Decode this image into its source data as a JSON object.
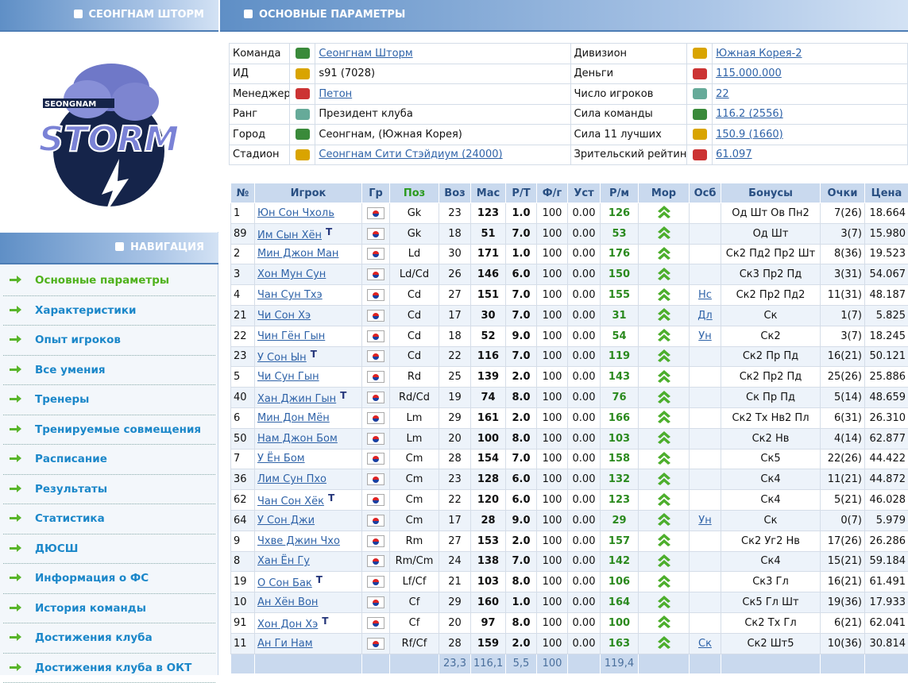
{
  "sidebar": {
    "team_header": "СЕОНГНАМ ШТОРМ",
    "logo": {
      "top": "SEONGNAM",
      "main": "STORM"
    },
    "nav_header": "НАВИГАЦИЯ",
    "nav": [
      "Основные параметры",
      "Характеристики",
      "Опыт игроков",
      "Все умения",
      "Тренеры",
      "Тренируемые совмещения",
      "Расписание",
      "Результаты",
      "Статистика",
      "ДЮСШ",
      "Информация о ФС",
      "История команды",
      "Достижения клуба",
      "Достижения клуба в ОКТ"
    ]
  },
  "main": {
    "header": "ОСНОВНЫЕ ПАРАМЕТРЫ",
    "info": {
      "left": [
        {
          "label": "Команда",
          "value": "Сеонгнам Шторм",
          "link": true
        },
        {
          "label": "ИД",
          "value": "s91 (7028)"
        },
        {
          "label": "Менеджер",
          "value": "Петон",
          "link": true
        },
        {
          "label": "Ранг",
          "value": "Президент клуба"
        },
        {
          "label": "Город",
          "value": "Сеонгнам, (Южная Корея)"
        },
        {
          "label": "Стадион",
          "value": "Сеонгнам Сити Стэйдиум (24000)",
          "link": true
        }
      ],
      "right": [
        {
          "label": "Дивизион",
          "value": "Южная Корея-2",
          "link": true
        },
        {
          "label": "Деньги",
          "value": "115.000.000",
          "link": true
        },
        {
          "label": "Число игроков",
          "value": "22",
          "link": true
        },
        {
          "label": "Сила команды",
          "value": "116.2 (2556)",
          "link": true
        },
        {
          "label": "Сила 11 лучших",
          "value": "150.9 (1660)",
          "link": true
        },
        {
          "label": "Зрительский рейтинг",
          "value": "61.097",
          "link": true
        }
      ]
    },
    "players": {
      "columns": [
        "№",
        "Игрок",
        "Гр",
        "Поз",
        "Воз",
        "Мас",
        "Р/Т",
        "Ф/г",
        "Уст",
        "Р/м",
        "Мор",
        "Осб",
        "Бонусы",
        "Очки",
        "Цена"
      ],
      "rows": [
        {
          "no": "1",
          "name": "Юн Сон Чхоль",
          "pos": "Gk",
          "age": "23",
          "mas": "123",
          "rt": "1.0",
          "fg": "100",
          "ust": "0.00",
          "rm": "126",
          "bonus": "Од Шт Ов Пн2",
          "points": "7(26)",
          "price": "18.664"
        },
        {
          "no": "89",
          "name": "Им Сын Хён",
          "tag": "T",
          "pos": "Gk",
          "age": "18",
          "mas": "51",
          "rt": "7.0",
          "fg": "100",
          "ust": "0.00",
          "rm": "53",
          "bonus": "Од Шт",
          "points": "3(7)",
          "price": "15.980"
        },
        {
          "no": "2",
          "name": "Мин Джон Ман",
          "pos": "Ld",
          "age": "30",
          "mas": "171",
          "rt": "1.0",
          "fg": "100",
          "ust": "0.00",
          "rm": "176",
          "bonus": "Ск2 Пд2 Пр2 Шт",
          "points": "8(36)",
          "price": "19.523"
        },
        {
          "no": "3",
          "name": "Хон Мун Сун",
          "pos": "Ld/Cd",
          "age": "26",
          "mas": "146",
          "rt": "6.0",
          "fg": "100",
          "ust": "0.00",
          "rm": "150",
          "bonus": "Ск3 Пр2 Пд",
          "points": "3(31)",
          "price": "54.067"
        },
        {
          "no": "4",
          "name": "Чан Сун Тхэ",
          "pos": "Cd",
          "age": "27",
          "mas": "151",
          "rt": "7.0",
          "fg": "100",
          "ust": "0.00",
          "rm": "155",
          "osb": "Нс",
          "bonus": "Ск2 Пр2 Пд2",
          "points": "11(31)",
          "price": "48.187"
        },
        {
          "no": "21",
          "name": "Чи Сон Хэ",
          "pos": "Cd",
          "age": "17",
          "mas": "30",
          "rt": "7.0",
          "fg": "100",
          "ust": "0.00",
          "rm": "31",
          "osb": "Дл",
          "bonus": "Ск",
          "points": "1(7)",
          "price": "5.825"
        },
        {
          "no": "22",
          "name": "Чин Гён Гын",
          "pos": "Cd",
          "age": "18",
          "mas": "52",
          "rt": "9.0",
          "fg": "100",
          "ust": "0.00",
          "rm": "54",
          "osb": "Ун",
          "bonus": "Ск2",
          "points": "3(7)",
          "price": "18.245"
        },
        {
          "no": "23",
          "name": "У Сон Ын",
          "tag": "T",
          "pos": "Cd",
          "age": "22",
          "mas": "116",
          "rt": "7.0",
          "fg": "100",
          "ust": "0.00",
          "rm": "119",
          "bonus": "Ск2 Пр Пд",
          "points": "16(21)",
          "price": "50.121"
        },
        {
          "no": "5",
          "name": "Чи Сун Гын",
          "pos": "Rd",
          "age": "25",
          "mas": "139",
          "rt": "2.0",
          "fg": "100",
          "ust": "0.00",
          "rm": "143",
          "bonus": "Ск2 Пр2 Пд",
          "points": "25(26)",
          "price": "25.886"
        },
        {
          "no": "40",
          "name": "Хан Джин Гын",
          "tag": "T",
          "pos": "Rd/Cd",
          "age": "19",
          "mas": "74",
          "rt": "8.0",
          "fg": "100",
          "ust": "0.00",
          "rm": "76",
          "bonus": "Ск Пр Пд",
          "points": "5(14)",
          "price": "48.659"
        },
        {
          "no": "6",
          "name": "Мин Дон Мён",
          "pos": "Lm",
          "age": "29",
          "mas": "161",
          "rt": "2.0",
          "fg": "100",
          "ust": "0.00",
          "rm": "166",
          "bonus": "Ск2 Тх Нв2 Пл",
          "points": "6(31)",
          "price": "26.310"
        },
        {
          "no": "50",
          "name": "Нам Джон Бом",
          "pos": "Lm",
          "age": "20",
          "mas": "100",
          "rt": "8.0",
          "fg": "100",
          "ust": "0.00",
          "rm": "103",
          "bonus": "Ск2 Нв",
          "points": "4(14)",
          "price": "62.877"
        },
        {
          "no": "7",
          "name": "У Ён Бом",
          "pos": "Cm",
          "age": "28",
          "mas": "154",
          "rt": "7.0",
          "fg": "100",
          "ust": "0.00",
          "rm": "158",
          "bonus": "Ск5",
          "points": "22(26)",
          "price": "44.422"
        },
        {
          "no": "36",
          "name": "Лим Сун Пхо",
          "pos": "Cm",
          "age": "23",
          "mas": "128",
          "rt": "6.0",
          "fg": "100",
          "ust": "0.00",
          "rm": "132",
          "bonus": "Ск4",
          "points": "11(21)",
          "price": "44.872"
        },
        {
          "no": "62",
          "name": "Чан Сон Хёк",
          "tag": "T",
          "pos": "Cm",
          "age": "22",
          "mas": "120",
          "rt": "6.0",
          "fg": "100",
          "ust": "0.00",
          "rm": "123",
          "bonus": "Ск4",
          "points": "5(21)",
          "price": "46.028"
        },
        {
          "no": "64",
          "name": "У Сон Джи",
          "pos": "Cm",
          "age": "17",
          "mas": "28",
          "rt": "9.0",
          "fg": "100",
          "ust": "0.00",
          "rm": "29",
          "osb": "Ун",
          "bonus": "Ск",
          "points": "0(7)",
          "price": "5.979"
        },
        {
          "no": "9",
          "name": "Чхве Джин Чхо",
          "pos": "Rm",
          "age": "27",
          "mas": "153",
          "rt": "2.0",
          "fg": "100",
          "ust": "0.00",
          "rm": "157",
          "bonus": "Ск2 Уг2 Нв",
          "points": "17(26)",
          "price": "26.286"
        },
        {
          "no": "8",
          "name": "Хан Ён Гу",
          "pos": "Rm/Cm",
          "age": "24",
          "mas": "138",
          "rt": "7.0",
          "fg": "100",
          "ust": "0.00",
          "rm": "142",
          "bonus": "Ск4",
          "points": "15(21)",
          "price": "59.184"
        },
        {
          "no": "19",
          "name": "О Сон Бак",
          "tag": "T",
          "pos": "Lf/Cf",
          "age": "21",
          "mas": "103",
          "rt": "8.0",
          "fg": "100",
          "ust": "0.00",
          "rm": "106",
          "bonus": "Ск3 Гл",
          "points": "16(21)",
          "price": "61.491"
        },
        {
          "no": "10",
          "name": "Ан Хён Вон",
          "pos": "Cf",
          "age": "29",
          "mas": "160",
          "rt": "1.0",
          "fg": "100",
          "ust": "0.00",
          "rm": "164",
          "bonus": "Ск5 Гл Шт",
          "points": "19(36)",
          "price": "17.933"
        },
        {
          "no": "91",
          "name": "Хон Дон Хэ",
          "tag": "T",
          "pos": "Cf",
          "age": "20",
          "mas": "97",
          "rt": "8.0",
          "fg": "100",
          "ust": "0.00",
          "rm": "100",
          "bonus": "Ск2 Тх Гл",
          "points": "6(21)",
          "price": "62.041"
        },
        {
          "no": "11",
          "name": "Ан Ги Нам",
          "pos": "Rf/Cf",
          "age": "28",
          "mas": "159",
          "rt": "2.0",
          "fg": "100",
          "ust": "0.00",
          "rm": "163",
          "osb": "Ск",
          "bonus": "Ск2 Шт5",
          "points": "10(36)",
          "price": "30.814"
        }
      ],
      "footer": {
        "age": "23,3",
        "mas": "116,1",
        "rt": "5,5",
        "fg": "100",
        "rm": "119,4"
      }
    }
  }
}
